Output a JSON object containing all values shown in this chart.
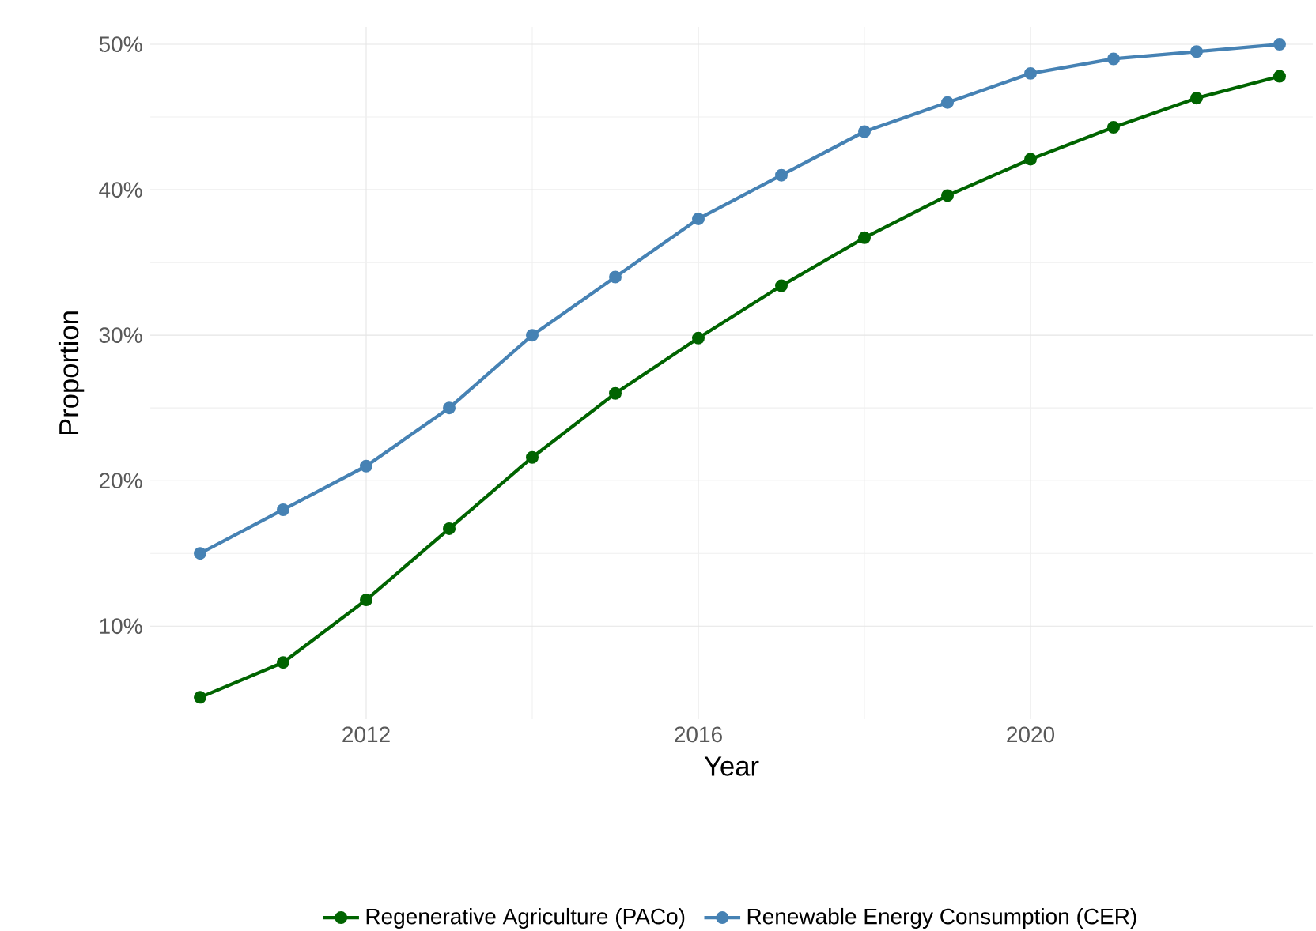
{
  "chart_data": {
    "type": "line",
    "xlabel": "Year",
    "ylabel": "Proportion",
    "x": [
      2010,
      2011,
      2012,
      2013,
      2014,
      2015,
      2016,
      2017,
      2018,
      2019,
      2020,
      2021,
      2022,
      2023
    ],
    "series": [
      {
        "name": "Regenerative Agriculture (PACo)",
        "color": "#006400",
        "values": [
          5.1,
          7.5,
          11.8,
          16.7,
          21.6,
          26.0,
          29.8,
          33.4,
          36.7,
          39.6,
          42.1,
          44.3,
          46.3,
          47.8
        ]
      },
      {
        "name": "Renewable Energy Consumption (CER)",
        "color": "#4682b4",
        "values": [
          15,
          18,
          21,
          25,
          30,
          34,
          38,
          41,
          44,
          46,
          48,
          49,
          49.5,
          50
        ]
      }
    ],
    "xlim": [
      2009.4,
      2023.4
    ],
    "ylim": [
      3.6,
      51.2
    ],
    "xticks": [
      2012,
      2016,
      2020
    ],
    "yticks": [
      {
        "value": 10,
        "label": "10%"
      },
      {
        "value": 20,
        "label": "20%"
      },
      {
        "value": 30,
        "label": "30%"
      },
      {
        "value": 40,
        "label": "40%"
      },
      {
        "value": 50,
        "label": "50%"
      }
    ],
    "grid": true,
    "legend": "bottom",
    "marker": "circle",
    "line_style": "solid"
  }
}
